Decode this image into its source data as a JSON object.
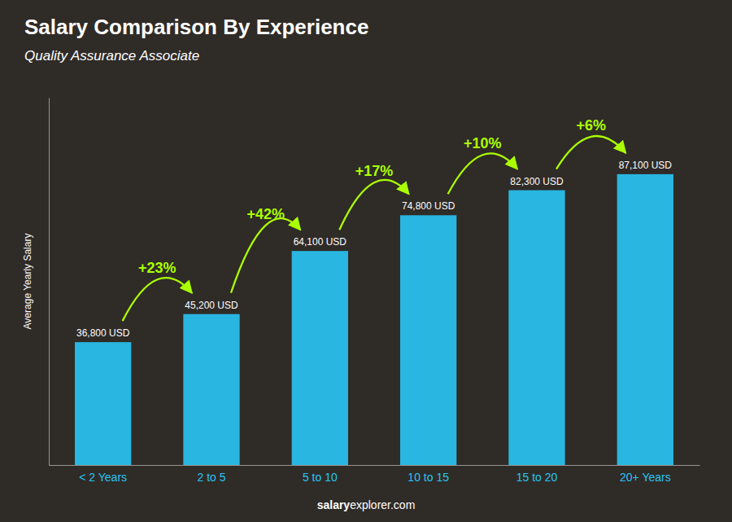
{
  "chart_data": {
    "type": "bar",
    "title": "Salary Comparison By Experience",
    "subtitle": "Quality Assurance Associate",
    "ylabel": "Average Yearly Salary",
    "categories": [
      "< 2 Years",
      "2 to 5",
      "5 to 10",
      "10 to 15",
      "15 to 20",
      "20+ Years"
    ],
    "values": [
      36800,
      45200,
      64100,
      74800,
      82300,
      87100
    ],
    "value_labels": [
      "36,800 USD",
      "45,200 USD",
      "64,100 USD",
      "74,800 USD",
      "82,300 USD",
      "87,100 USD"
    ],
    "data_labels": true,
    "color": "#29C5F6",
    "ylim": [
      0,
      110000
    ],
    "tick_labels": "x",
    "grid": false,
    "annotations": {
      "texts": [
        "+23%",
        "+42%",
        "+17%",
        "+10%",
        "+6%"
      ],
      "color": "#AAFF00"
    },
    "watermark": [
      "salary",
      "explorer.com"
    ]
  }
}
